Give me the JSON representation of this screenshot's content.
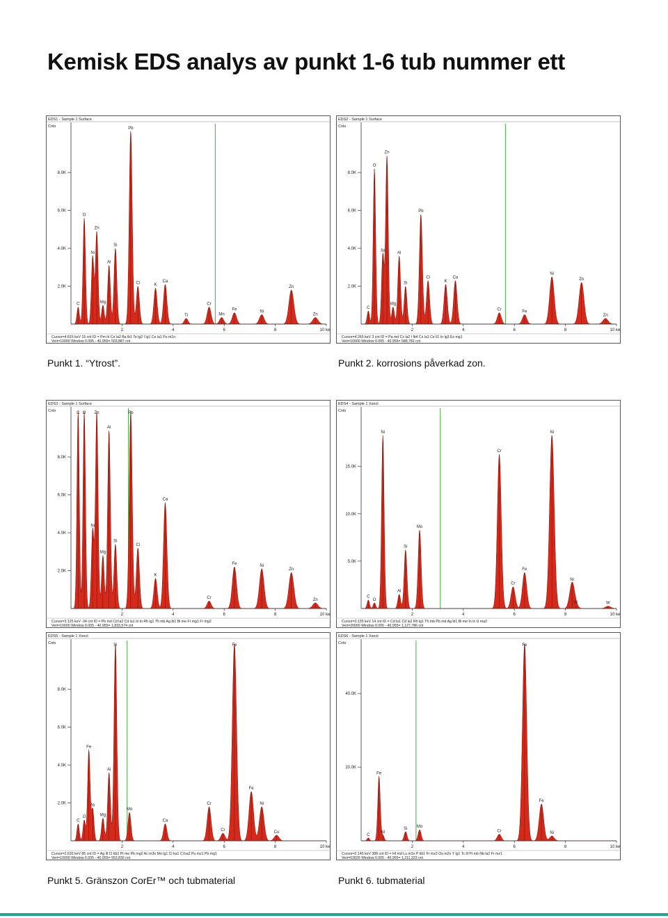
{
  "page": {
    "title": "Kemisk EDS analys av punkt 1-6 tub nummer ett",
    "captions": [
      "Punkt 1. “Ytrost”.",
      "Punkt 2. korrosions påverkad zon.",
      "Punkt 5. Gränszon CorEr™ och tubmaterial",
      "Punkt 6. tubmaterial"
    ],
    "accent_color": "#1aa890",
    "peak_color": "#d42a1c",
    "marker_color": "#3fae3f"
  },
  "chart_data": [
    {
      "type": "area",
      "panel_title": "EDS1 - Sample 1 Surface",
      "ylabel": "Cnts",
      "xlabel": "keV",
      "x_ticks": [
        "2",
        "4",
        "6",
        "8",
        "10 keV"
      ],
      "y_ticks": [
        "2.0K",
        "4.0K",
        "6.0K",
        "8.0K"
      ],
      "xlim": [
        0,
        10
      ],
      "ylim": [
        0,
        10500
      ],
      "marker_kev": 5.65,
      "peaks": [
        {
          "label": "C",
          "kev": 0.28,
          "height": 900
        },
        {
          "label": "O",
          "kev": 0.52,
          "height": 5600
        },
        {
          "label": "Ni",
          "kev": 0.85,
          "height": 3600
        },
        {
          "label": "Zn",
          "kev": 1.01,
          "height": 4900
        },
        {
          "label": "Mg",
          "kev": 1.25,
          "height": 1000
        },
        {
          "label": "Al",
          "kev": 1.49,
          "height": 3100
        },
        {
          "label": "Si",
          "kev": 1.74,
          "height": 4000
        },
        {
          "label": "Pb",
          "kev": 2.34,
          "height": 10200
        },
        {
          "label": "Cl",
          "kev": 2.62,
          "height": 2000
        },
        {
          "label": "K",
          "kev": 3.31,
          "height": 1900
        },
        {
          "label": "Ca",
          "kev": 3.69,
          "height": 2100
        },
        {
          "label": "Ti",
          "kev": 4.51,
          "height": 300
        },
        {
          "label": "Cr",
          "kev": 5.41,
          "height": 900
        },
        {
          "label": "Mn",
          "kev": 5.9,
          "height": 350
        },
        {
          "label": "Fe",
          "kev": 6.4,
          "height": 600
        },
        {
          "label": "Ni",
          "kev": 7.47,
          "height": 500
        },
        {
          "label": "Zn",
          "kev": 8.63,
          "height": 1800
        },
        {
          "label": "Zn",
          "kev": 9.57,
          "height": 350
        }
      ],
      "footer": [
        "Cursor=4.815 keV  15 cnt  ID = Pm lrl  Ce la2  Ba lb1  Te lg2  I lg1  Ce la1  Pu m1n",
        "Vert=10000          Window 0.005 - 40.955=  503,887 cnt"
      ]
    },
    {
      "type": "area",
      "panel_title": "EDS2 - Sample 1 Surface",
      "ylabel": "Cnts",
      "xlabel": "keV",
      "x_ticks": [
        "2",
        "4",
        "6",
        "8",
        "10 keV"
      ],
      "y_ticks": [
        "2.0K",
        "4.0K",
        "6.0K",
        "8.0K"
      ],
      "xlim": [
        0,
        10
      ],
      "ylim": [
        0,
        10500
      ],
      "marker_kev": 5.65,
      "peaks": [
        {
          "label": "C",
          "kev": 0.28,
          "height": 700
        },
        {
          "label": "O",
          "kev": 0.52,
          "height": 8200
        },
        {
          "label": "Zn",
          "kev": 1.01,
          "height": 8900
        },
        {
          "label": "Ni",
          "kev": 0.85,
          "height": 3700
        },
        {
          "label": "Mg",
          "kev": 1.25,
          "height": 900
        },
        {
          "label": "Al",
          "kev": 1.49,
          "height": 3600
        },
        {
          "label": "Si",
          "kev": 1.74,
          "height": 2000
        },
        {
          "label": "Pb",
          "kev": 2.34,
          "height": 5800
        },
        {
          "label": "Cl",
          "kev": 2.62,
          "height": 2300
        },
        {
          "label": "K",
          "kev": 3.31,
          "height": 2100
        },
        {
          "label": "Ca",
          "kev": 3.69,
          "height": 2300
        },
        {
          "label": "Cr",
          "kev": 5.41,
          "height": 600
        },
        {
          "label": "Fe",
          "kev": 6.4,
          "height": 500
        },
        {
          "label": "Ni",
          "kev": 7.47,
          "height": 2500
        },
        {
          "label": "Zn",
          "kev": 8.63,
          "height": 2200
        },
        {
          "label": "Zn",
          "kev": 9.57,
          "height": 300
        }
      ],
      "footer": [
        "Cursor=4.265 keV  3 cnt  ID = Pa md  Cs la2  I lb4  Cs la1  Ce ll1  In lg3  Es mg1",
        "Vert=10000          Window 0.005 - 40.955=  588,782 cnt"
      ]
    },
    {
      "type": "area",
      "panel_title": "EDS3 - Sample 1 Surface",
      "ylabel": "Cnts",
      "xlabel": "keV",
      "x_ticks": [
        "2",
        "4",
        "6",
        "8",
        "10 keV"
      ],
      "y_ticks": [
        "2.0K",
        "4.0K",
        "6.0K",
        "8.0K"
      ],
      "xlim": [
        0,
        10
      ],
      "ylim": [
        0,
        10500
      ],
      "marker_kev": 2.25,
      "peaks": [
        {
          "label": "C",
          "kev": 0.28,
          "height": 10400
        },
        {
          "label": "O",
          "kev": 0.52,
          "height": 10400
        },
        {
          "label": "Ni",
          "kev": 0.85,
          "height": 4200
        },
        {
          "label": "Zn",
          "kev": 1.01,
          "height": 10400
        },
        {
          "label": "Mg",
          "kev": 1.25,
          "height": 2800
        },
        {
          "label": "Al",
          "kev": 1.49,
          "height": 9400
        },
        {
          "label": "Si",
          "kev": 1.74,
          "height": 3400
        },
        {
          "label": "Pb",
          "kev": 2.34,
          "height": 10400
        },
        {
          "label": "Cl",
          "kev": 2.62,
          "height": 3200
        },
        {
          "label": "K",
          "kev": 3.31,
          "height": 1600
        },
        {
          "label": "Ca",
          "kev": 3.69,
          "height": 5600
        },
        {
          "label": "Cr",
          "kev": 5.41,
          "height": 400
        },
        {
          "label": "Fe",
          "kev": 6.4,
          "height": 2200
        },
        {
          "label": "Ni",
          "kev": 7.47,
          "height": 2100
        },
        {
          "label": "Zn",
          "kev": 8.63,
          "height": 1900
        },
        {
          "label": "Zn",
          "kev": 9.57,
          "height": 300
        }
      ],
      "footer": [
        "Cursor=3.125 keV  -34 cnt  ID = Pb md  Cd la2  Cd la1  In ln  Rh lg1  Th mb  Ag lb1  Bi me  Fr mg1  Fr mg2",
        "Vert=10000          Window 0.005 - 40.955=  1,833,574 cnt"
      ]
    },
    {
      "type": "area",
      "panel_title": "EDS4 - Sample 1 Xsect",
      "ylabel": "Cnts",
      "xlabel": "keV",
      "x_ticks": [
        "2",
        "4",
        "6",
        "8",
        "10 keV"
      ],
      "y_ticks": [
        "5.0K",
        "10.0K",
        "15.0K"
      ],
      "xlim": [
        0,
        10
      ],
      "ylim": [
        0,
        21000
      ],
      "marker_kev": 3.1,
      "peaks": [
        {
          "label": "C",
          "kev": 0.28,
          "height": 900
        },
        {
          "label": "O",
          "kev": 0.52,
          "height": 600
        },
        {
          "label": "Ni",
          "kev": 0.85,
          "height": 18300
        },
        {
          "label": "Al",
          "kev": 1.49,
          "height": 1500
        },
        {
          "label": "Si",
          "kev": 1.74,
          "height": 6200
        },
        {
          "label": "Mo",
          "kev": 2.29,
          "height": 8300
        },
        {
          "label": "Cr",
          "kev": 5.41,
          "height": 16300
        },
        {
          "label": "Fe",
          "kev": 6.4,
          "height": 3800
        },
        {
          "label": "Cr",
          "kev": 5.95,
          "height": 2300
        },
        {
          "label": "Ni",
          "kev": 7.47,
          "height": 18300
        },
        {
          "label": "Ni",
          "kev": 8.26,
          "height": 2700
        },
        {
          "label": "W",
          "kev": 8.4,
          "height": 300
        },
        {
          "label": "W",
          "kev": 9.67,
          "height": 250
        }
      ],
      "footer": [
        "Cursor=3.135 keV  14 cnt  ID = Cd la1  Cd la2  Rh lg1  Th mb  Pb md  Ag lb1  Bi me  In ln  U ma2",
        "Vert=20000          Window 0.005 - 40.955=  1,127,786 cnt"
      ]
    },
    {
      "type": "area",
      "panel_title": "EDS5 - Sample 1 Xsect",
      "ylabel": "Cnts",
      "xlabel": "keV",
      "x_ticks": [
        "2",
        "4",
        "6",
        "8",
        "10 keV"
      ],
      "y_ticks": [
        "2.0K",
        "4.0K",
        "6.0K",
        "8.0K"
      ],
      "xlim": [
        0,
        10
      ],
      "ylim": [
        0,
        10500
      ],
      "marker_kev": 2.2,
      "peaks": [
        {
          "label": "C",
          "kev": 0.28,
          "height": 900
        },
        {
          "label": "O",
          "kev": 0.52,
          "height": 1100
        },
        {
          "label": "Fe",
          "kev": 0.7,
          "height": 4800
        },
        {
          "label": "Ni",
          "kev": 0.85,
          "height": 1700
        },
        {
          "label": "Mg",
          "kev": 1.25,
          "height": 1200
        },
        {
          "label": "Al",
          "kev": 1.49,
          "height": 3600
        },
        {
          "label": "Si",
          "kev": 1.74,
          "height": 10400
        },
        {
          "label": "Mo",
          "kev": 2.29,
          "height": 1500
        },
        {
          "label": "Ca",
          "kev": 3.69,
          "height": 900
        },
        {
          "label": "Cr",
          "kev": 5.41,
          "height": 1800
        },
        {
          "label": "Cr",
          "kev": 5.95,
          "height": 400
        },
        {
          "label": "Fe",
          "kev": 6.4,
          "height": 10400
        },
        {
          "label": "Fe",
          "kev": 7.06,
          "height": 2600
        },
        {
          "label": "Ni",
          "kev": 7.47,
          "height": 1800
        },
        {
          "label": "Cu",
          "kev": 8.05,
          "height": 300
        }
      ],
      "footer": [
        "Cursor=2.635 keV  85 cnt  ID = Ag lll  Cl kb2  Pt me  Pb mg2  Ac m3n  Mo lg1  Cl ka1  Cl ka2  Pu mz1  Pb mg1",
        "Vert=10000          Window 0.005 - 40.955=  953,830 cnt"
      ]
    },
    {
      "type": "area",
      "panel_title": "EDS6 - Sample 1 Xsect",
      "ylabel": "Cnts",
      "xlabel": "keV",
      "x_ticks": [
        "2",
        "4",
        "6",
        "8",
        "10 keV"
      ],
      "y_ticks": [
        "20.0K",
        "40.0K"
      ],
      "xlim": [
        0,
        10
      ],
      "ylim": [
        0,
        54000
      ],
      "marker_kev": 2.15,
      "peaks": [
        {
          "label": "C",
          "kev": 0.28,
          "height": 800
        },
        {
          "label": "Fe",
          "kev": 0.7,
          "height": 17500
        },
        {
          "label": "Ni",
          "kev": 0.85,
          "height": 1500
        },
        {
          "label": "Si",
          "kev": 1.74,
          "height": 2500
        },
        {
          "label": "Mo",
          "kev": 2.29,
          "height": 3000
        },
        {
          "label": "Cr",
          "kev": 5.41,
          "height": 1800
        },
        {
          "label": "Fe",
          "kev": 6.4,
          "height": 53500
        },
        {
          "label": "Fe",
          "kev": 7.06,
          "height": 10000
        },
        {
          "label": "Ni",
          "kev": 7.47,
          "height": 1300
        }
      ],
      "footer": [
        "Cursor=2.145 keV  388 cnt  ID = Hf md  Lu m1n  P kb1  Fr mz2  Os m2n  Y lg1  Tc lll  Pt mb  Nb la2  Fr mz1",
        "Vert=53026          Window 0.005 - 40.955=  1,211,323 cnt"
      ]
    }
  ]
}
